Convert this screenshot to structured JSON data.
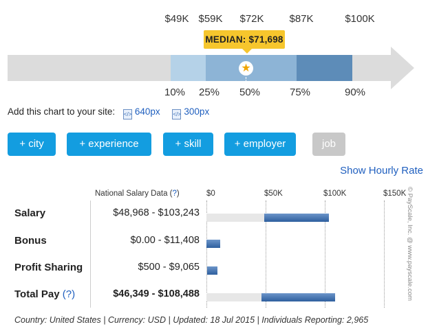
{
  "percentile_chart": {
    "top_labels": [
      "$49K",
      "$59K",
      "$72K",
      "$87K",
      "$100K"
    ],
    "bottom_labels": [
      "10%",
      "25%",
      "50%",
      "75%",
      "90%"
    ],
    "median_label": "MEDIAN: $71,698",
    "colors": {
      "track": "#dcdcdc",
      "p10_25": "#b5d2e8",
      "p25_50": "#8db4d6",
      "p50_75": "#8db4d6",
      "p75_90": "#5d8cb8",
      "median": "#f6c62d"
    }
  },
  "embed": {
    "text": "Add this chart to your site:",
    "link_640": "640px",
    "link_300": "300px"
  },
  "filters": {
    "city": "+ city",
    "experience": "+ experience",
    "skill": "+ skill",
    "employer": "+ employer",
    "job": "job"
  },
  "hourly_link": "Show Hourly Rate",
  "table": {
    "header_label": "National Salary Data (",
    "header_q": "?",
    "header_close": ")",
    "ticks": [
      "$0",
      "$50K",
      "$100K",
      "$150K"
    ]
  },
  "chart_data": {
    "type": "bar",
    "orientation": "horizontal-range",
    "categories": [
      "Salary",
      "Bonus",
      "Profit Sharing",
      "Total Pay"
    ],
    "ranges": [
      {
        "label": "Salary",
        "text": "$48,968 - $103,243",
        "low": 48968,
        "high": 103243
      },
      {
        "label": "Bonus",
        "text": "$0.00 - $11,408",
        "low": 0,
        "high": 11408
      },
      {
        "label": "Profit Sharing",
        "text": "$500 - $9,065",
        "low": 500,
        "high": 9065
      },
      {
        "label": "Total Pay",
        "text": "$46,349 - $108,488",
        "low": 46349,
        "high": 108488
      }
    ],
    "xlim": [
      0,
      150000
    ],
    "xticks": [
      "$0",
      "$50K",
      "$100K",
      "$150K"
    ]
  },
  "total_pay_q": "(?)",
  "copyright": "© PayScale, Inc. @ www.payscale.com",
  "footer": "Country: United States | Currency: USD | Updated: 18 Jul 2015 | Individuals Reporting: 2,965"
}
